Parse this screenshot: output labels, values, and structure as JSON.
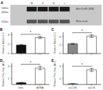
{
  "chart_data": [
    {
      "type": "blot",
      "title": "A",
      "categories": [
        "N",
        "V",
        "S",
        "+"
      ],
      "annotations": [
        "50kDa",
        "40kDa",
        "37kDa",
        "Anti-Ku80 (WB)",
        "Beta-actin"
      ],
      "colors": [
        "#1a1a1a",
        "#555555"
      ],
      "color": "#c8c8c8"
    },
    {
      "type": "bar",
      "title": "B",
      "y_label": "Relative Band LC-C",
      "categories": [
        null,
        null
      ],
      "values": [
        1.8,
        3.4
      ],
      "error": [
        0.12,
        0.22
      ],
      "colors": [
        "#111111",
        "#ffffff"
      ],
      "ylim": [
        0,
        4.5
      ],
      "yticks": [
        0,
        1,
        2,
        3,
        4
      ],
      "annotations": [
        "*"
      ]
    },
    {
      "type": "bar",
      "title": "C",
      "y_label": "Relative Band LC-C",
      "categories": [
        null,
        null
      ],
      "values": [
        2.3,
        4.1
      ],
      "error": [
        0.12,
        0.3
      ],
      "colors": [
        "#888888",
        "#ffffff"
      ],
      "ylim": [
        0,
        5.0
      ],
      "yticks": [
        0,
        1,
        2,
        3,
        4
      ],
      "annotations": [
        "*"
      ]
    },
    {
      "type": "bar",
      "title": "D",
      "y_label": "Relative Prot. Exp. (AU)",
      "categories": [
        "Veh.",
        "ATRA"
      ],
      "values": [
        0.3,
        2.7
      ],
      "error": [
        0.05,
        0.28
      ],
      "colors": [
        "#111111",
        "#ffffff"
      ],
      "ylim": [
        0,
        3.5
      ],
      "yticks": [
        0,
        1,
        2,
        3
      ],
      "annotations": [
        "*"
      ]
    },
    {
      "type": "bar",
      "title": "E",
      "y_label": "Relative Prot. Exp. (AU)",
      "categories": [
        "siCON",
        "siLOX"
      ],
      "values": [
        0.12,
        2.4
      ],
      "error": [
        0.03,
        0.26
      ],
      "colors": [
        "#aaaaaa",
        "#ffffff"
      ],
      "ylim": [
        0,
        3.5
      ],
      "yticks": [
        0,
        1,
        2,
        3
      ],
      "annotations": [
        "*"
      ]
    }
  ]
}
